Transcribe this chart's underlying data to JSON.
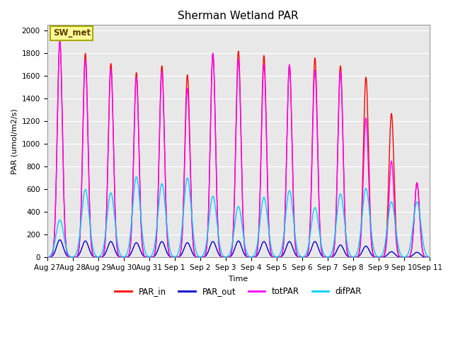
{
  "title": "Sherman Wetland PAR",
  "xlabel": "Time",
  "ylabel": "PAR (umol/m2/s)",
  "ylim": [
    0,
    2050
  ],
  "yticks": [
    0,
    200,
    400,
    600,
    800,
    1000,
    1200,
    1400,
    1600,
    1800,
    2000
  ],
  "legend_label": "SW_met",
  "series": {
    "PAR_in": {
      "color": "#ff0000",
      "lw": 1.0
    },
    "PAR_out": {
      "color": "#0000cc",
      "lw": 1.0
    },
    "totPAR": {
      "color": "#ff00ff",
      "lw": 1.0
    },
    "difPAR": {
      "color": "#00ccff",
      "lw": 1.0
    }
  },
  "bg_color": "#e8e8e8",
  "n_days": 15,
  "day_names": [
    "Aug 27",
    "Aug 28",
    "Aug 29",
    "Aug 30",
    "Aug 31",
    "Sep 1",
    "Sep 2",
    "Sep 3",
    "Sep 4",
    "Sep 5",
    "Sep 6",
    "Sep 7",
    "Sep 8",
    "Sep 9",
    "Sep 10",
    "Sep 11"
  ],
  "par_in_peaks": [
    1910,
    1800,
    1710,
    1630,
    1690,
    1610,
    1800,
    1820,
    1780,
    1700,
    1760,
    1690,
    1590,
    1270,
    660
  ],
  "par_out_peaks": [
    155,
    145,
    140,
    130,
    140,
    130,
    140,
    145,
    140,
    140,
    140,
    110,
    100,
    50,
    45
  ],
  "totpar_peaks": [
    1900,
    1740,
    1660,
    1590,
    1640,
    1490,
    1800,
    1750,
    1700,
    1700,
    1650,
    1640,
    1230,
    850,
    655
  ],
  "difpar_peaks": [
    330,
    600,
    570,
    710,
    650,
    700,
    540,
    450,
    530,
    590,
    440,
    560,
    610,
    490,
    490
  ],
  "peak_sigma": 0.1,
  "par_out_sigma": 0.13
}
